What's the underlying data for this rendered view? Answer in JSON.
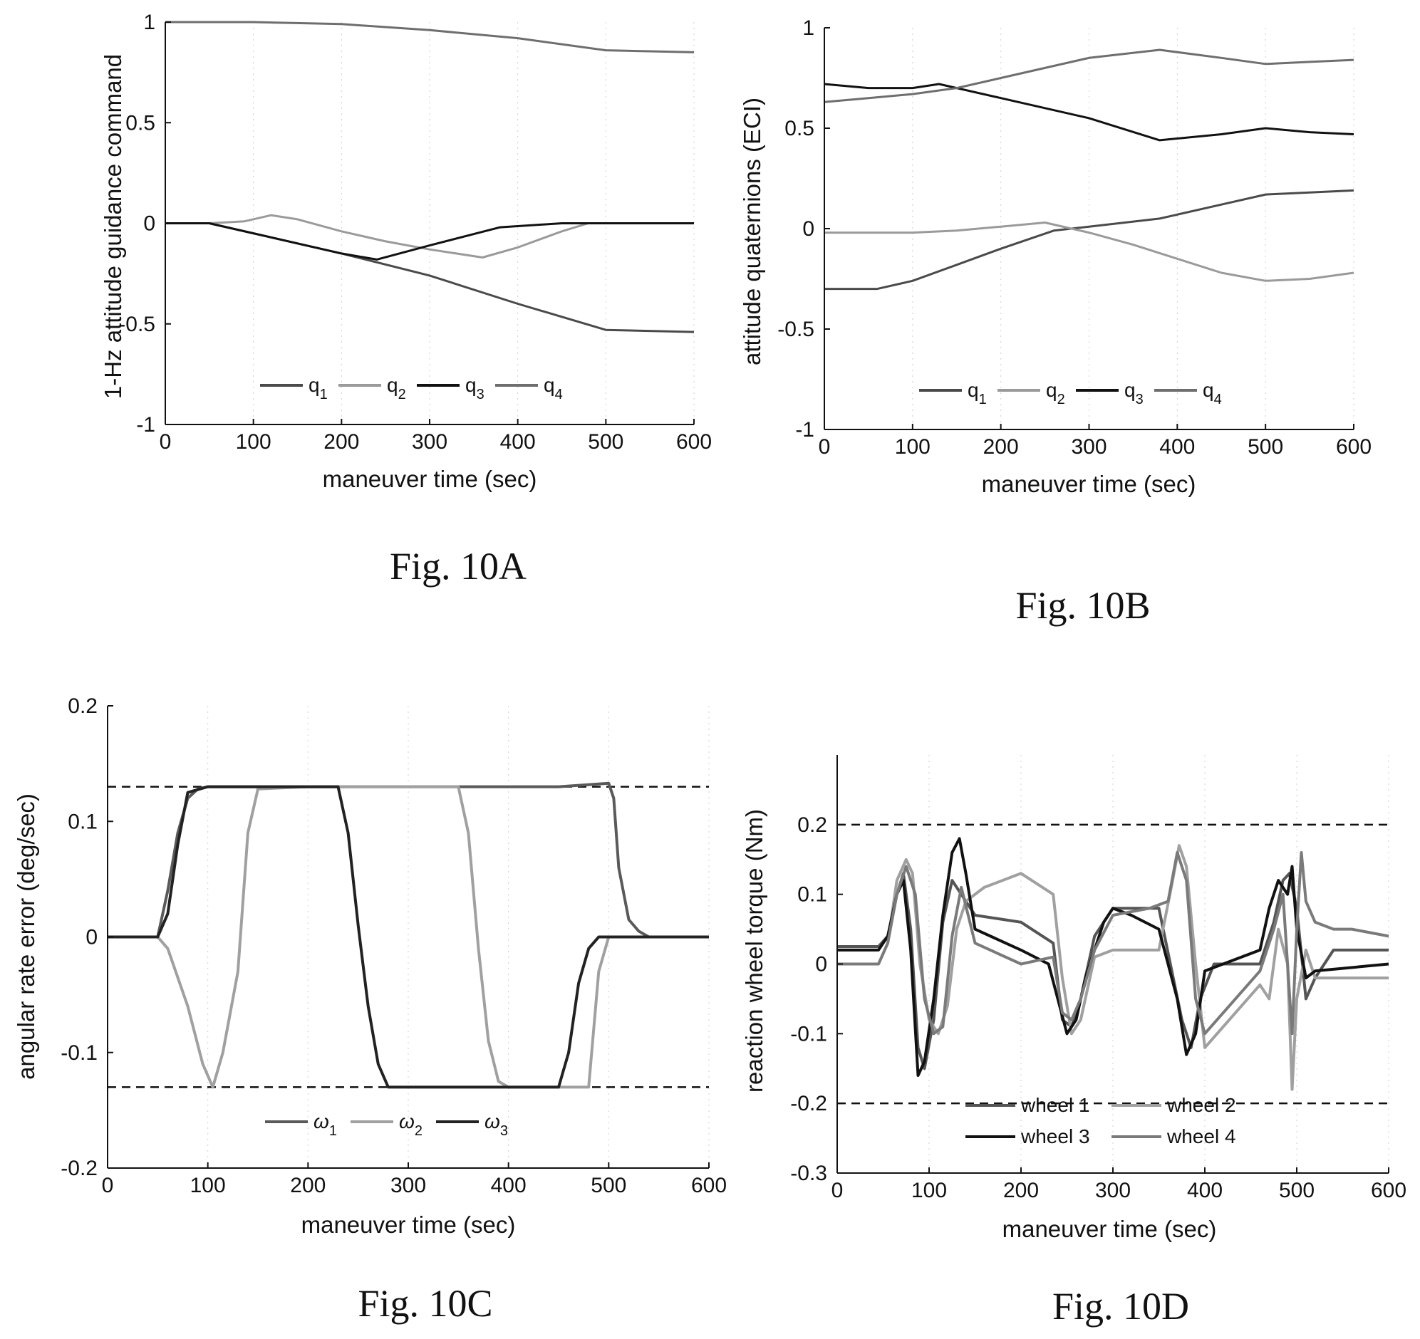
{
  "chart_data": [
    {
      "id": "a",
      "type": "line",
      "caption": "Fig. 10A",
      "xlabel": "maneuver time (sec)",
      "ylabel": "1-Hz attitude guidance command",
      "xlim": [
        0,
        600
      ],
      "ylim": [
        -1,
        1
      ],
      "xticks": [
        0,
        100,
        200,
        300,
        400,
        500,
        600
      ],
      "xtick_labels": [
        "0",
        "100",
        "200",
        "300",
        "400",
        "500",
        "600"
      ],
      "yticks": [
        -1,
        -0.5,
        0,
        0.5,
        1
      ],
      "ytick_labels": [
        "-1",
        "-0.5",
        "0",
        "0.5",
        "1"
      ],
      "legend_position": "bottom-center",
      "legend_cols": 4,
      "series": [
        {
          "name": "q",
          "sub": "1",
          "color": "#4a4a4a",
          "x": [
            0,
            50,
            100,
            200,
            300,
            400,
            500,
            600
          ],
          "y": [
            0,
            0,
            -0.05,
            -0.15,
            -0.26,
            -0.4,
            -0.53,
            -0.54
          ]
        },
        {
          "name": "q",
          "sub": "2",
          "color": "#9a9a9a",
          "x": [
            0,
            50,
            90,
            120,
            150,
            200,
            250,
            300,
            360,
            400,
            450,
            480,
            600
          ],
          "y": [
            0,
            0,
            0.01,
            0.04,
            0.02,
            -0.04,
            -0.09,
            -0.13,
            -0.17,
            -0.12,
            -0.04,
            0,
            0
          ]
        },
        {
          "name": "q",
          "sub": "3",
          "color": "#111111",
          "x": [
            0,
            50,
            100,
            150,
            200,
            240,
            300,
            380,
            450,
            500,
            600
          ],
          "y": [
            0,
            0,
            -0.05,
            -0.1,
            -0.15,
            -0.18,
            -0.11,
            -0.02,
            0,
            0,
            0
          ]
        },
        {
          "name": "q",
          "sub": "4",
          "color": "#6e6e6e",
          "x": [
            0,
            100,
            200,
            300,
            400,
            500,
            600
          ],
          "y": [
            1,
            1,
            0.99,
            0.96,
            0.92,
            0.86,
            0.85
          ]
        }
      ]
    },
    {
      "id": "b",
      "type": "line",
      "caption": "Fig. 10B",
      "xlabel": "maneuver time (sec)",
      "ylabel": "attitude quaternions (ECI)",
      "xlim": [
        0,
        600
      ],
      "ylim": [
        -1,
        1
      ],
      "xticks": [
        0,
        100,
        200,
        300,
        400,
        500,
        600
      ],
      "xtick_labels": [
        "0",
        "100",
        "200",
        "300",
        "400",
        "500",
        "600"
      ],
      "yticks": [
        -1,
        -0.5,
        0,
        0.5,
        1
      ],
      "ytick_labels": [
        "-1",
        "-0.5",
        "0",
        "0.5",
        "1"
      ],
      "legend_position": "bottom-center",
      "legend_cols": 4,
      "series": [
        {
          "name": "q",
          "sub": "1",
          "color": "#4a4a4a",
          "x": [
            0,
            60,
            100,
            150,
            200,
            260,
            300,
            380,
            450,
            500,
            550,
            600
          ],
          "y": [
            -0.3,
            -0.3,
            -0.26,
            -0.18,
            -0.1,
            -0.01,
            0.01,
            0.05,
            0.12,
            0.17,
            0.18,
            0.19
          ]
        },
        {
          "name": "q",
          "sub": "2",
          "color": "#9a9a9a",
          "x": [
            0,
            100,
            150,
            200,
            250,
            300,
            350,
            400,
            450,
            500,
            550,
            600
          ],
          "y": [
            -0.02,
            -0.02,
            -0.01,
            0.01,
            0.03,
            -0.02,
            -0.08,
            -0.15,
            -0.22,
            -0.26,
            -0.25,
            -0.22
          ]
        },
        {
          "name": "q",
          "sub": "3",
          "color": "#111111",
          "x": [
            0,
            50,
            100,
            130,
            200,
            300,
            380,
            450,
            500,
            550,
            600
          ],
          "y": [
            0.72,
            0.7,
            0.7,
            0.72,
            0.65,
            0.55,
            0.44,
            0.47,
            0.5,
            0.48,
            0.47
          ]
        },
        {
          "name": "q",
          "sub": "4",
          "color": "#6e6e6e",
          "x": [
            0,
            50,
            100,
            150,
            200,
            250,
            300,
            380,
            450,
            500,
            550,
            600
          ],
          "y": [
            0.63,
            0.65,
            0.67,
            0.7,
            0.75,
            0.8,
            0.85,
            0.89,
            0.85,
            0.82,
            0.83,
            0.84
          ]
        }
      ]
    },
    {
      "id": "c",
      "type": "line",
      "caption": "Fig. 10C",
      "xlabel": "maneuver time (sec)",
      "ylabel": "angular rate error (deg/sec)",
      "xlim": [
        0,
        600
      ],
      "ylim": [
        -0.2,
        0.2
      ],
      "xticks": [
        0,
        100,
        200,
        300,
        400,
        500,
        600
      ],
      "xtick_labels": [
        "0",
        "100",
        "200",
        "300",
        "400",
        "500",
        "600"
      ],
      "yticks": [
        -0.2,
        -0.1,
        0,
        0.1,
        0.2
      ],
      "ytick_labels": [
        "-0.2",
        "-0.1",
        "0",
        "0.1",
        "0.2"
      ],
      "reference_lines": [
        0.13,
        -0.13
      ],
      "legend_position": "bottom-center",
      "legend_cols": 3,
      "series": [
        {
          "name": "ω",
          "sub": "1",
          "color": "#5a5a5a",
          "x": [
            0,
            50,
            60,
            70,
            80,
            90,
            100,
            150,
            200,
            300,
            400,
            450,
            500,
            505,
            510,
            520,
            530,
            540,
            600
          ],
          "y": [
            0,
            0,
            0.04,
            0.09,
            0.12,
            0.128,
            0.13,
            0.13,
            0.13,
            0.13,
            0.13,
            0.13,
            0.133,
            0.12,
            0.06,
            0.015,
            0.005,
            0,
            0
          ]
        },
        {
          "name": "ω",
          "sub": "2",
          "color": "#a0a0a0",
          "x": [
            0,
            50,
            60,
            80,
            95,
            105,
            115,
            130,
            140,
            150,
            200,
            250,
            300,
            350,
            360,
            370,
            380,
            390,
            400,
            450,
            480,
            490,
            500,
            600
          ],
          "y": [
            0,
            0,
            -0.01,
            -0.06,
            -0.11,
            -0.13,
            -0.1,
            -0.03,
            0.09,
            0.128,
            0.13,
            0.13,
            0.13,
            0.13,
            0.09,
            -0.01,
            -0.09,
            -0.125,
            -0.13,
            -0.13,
            -0.13,
            -0.03,
            0,
            0
          ]
        },
        {
          "name": "ω",
          "sub": "3",
          "color": "#222222",
          "x": [
            0,
            50,
            60,
            70,
            80,
            100,
            150,
            230,
            240,
            250,
            260,
            270,
            280,
            300,
            400,
            450,
            460,
            470,
            480,
            490,
            500,
            600
          ],
          "y": [
            0,
            0,
            0.02,
            0.08,
            0.125,
            0.13,
            0.13,
            0.13,
            0.09,
            0.01,
            -0.06,
            -0.11,
            -0.13,
            -0.13,
            -0.13,
            -0.13,
            -0.1,
            -0.04,
            -0.01,
            0,
            0,
            0
          ]
        }
      ]
    },
    {
      "id": "d",
      "type": "line",
      "caption": "Fig. 10D",
      "xlabel": "maneuver time (sec)",
      "ylabel": "reaction wheel torque (Nm)",
      "xlim": [
        0,
        600
      ],
      "ylim": [
        -0.3,
        0.3
      ],
      "xticks": [
        0,
        100,
        200,
        300,
        400,
        500,
        600
      ],
      "xtick_labels": [
        "0",
        "100",
        "200",
        "300",
        "400",
        "500",
        "600"
      ],
      "yticks": [
        -0.3,
        -0.2,
        -0.1,
        0,
        0.1,
        0.2
      ],
      "ytick_labels": [
        "-0.3",
        "-0.2",
        "-0.1",
        "0",
        "0.1",
        "0.2"
      ],
      "reference_lines": [
        0.2,
        -0.2
      ],
      "legend_position": "bottom-center",
      "legend_cols": 2,
      "series": [
        {
          "name": "wheel 1",
          "color": "#555555",
          "x": [
            0,
            45,
            55,
            65,
            72,
            80,
            88,
            95,
            105,
            115,
            125,
            135,
            150,
            200,
            235,
            245,
            255,
            265,
            280,
            300,
            350,
            375,
            385,
            395,
            410,
            460,
            475,
            485,
            492,
            500,
            510,
            520,
            540,
            600
          ],
          "y": [
            0.025,
            0.025,
            0.04,
            0.1,
            0.13,
            0.05,
            -0.12,
            -0.15,
            -0.08,
            0.06,
            0.12,
            0.1,
            0.07,
            0.06,
            0.03,
            -0.08,
            -0.09,
            -0.05,
            0.04,
            0.08,
            0.08,
            -0.08,
            -0.12,
            -0.05,
            0,
            0,
            0.06,
            0.12,
            0.13,
            0.08,
            -0.05,
            -0.02,
            0.02,
            0.02
          ]
        },
        {
          "name": "wheel 2",
          "color": "#a0a0a0",
          "x": [
            0,
            45,
            55,
            65,
            75,
            82,
            90,
            100,
            110,
            120,
            130,
            140,
            160,
            200,
            235,
            245,
            255,
            265,
            280,
            300,
            350,
            365,
            372,
            380,
            390,
            400,
            460,
            470,
            480,
            490,
            495,
            500,
            510,
            520,
            600
          ],
          "y": [
            0,
            0,
            0.03,
            0.12,
            0.15,
            0.13,
            0,
            -0.08,
            -0.1,
            -0.06,
            0.05,
            0.09,
            0.11,
            0.13,
            0.1,
            -0.02,
            -0.1,
            -0.08,
            0.01,
            0.02,
            0.02,
            0.12,
            0.17,
            0.14,
            0,
            -0.12,
            -0.03,
            -0.05,
            0.05,
            0,
            -0.18,
            -0.05,
            0.02,
            -0.02,
            -0.02
          ]
        },
        {
          "name": "wheel 3",
          "color": "#111111",
          "x": [
            0,
            45,
            55,
            65,
            72,
            80,
            88,
            95,
            105,
            115,
            125,
            133,
            140,
            150,
            200,
            230,
            240,
            250,
            260,
            270,
            290,
            300,
            320,
            350,
            370,
            380,
            390,
            400,
            460,
            470,
            480,
            490,
            495,
            500,
            510,
            520,
            600
          ],
          "y": [
            0.02,
            0.02,
            0.04,
            0.1,
            0.12,
            0.02,
            -0.16,
            -0.14,
            -0.05,
            0.07,
            0.16,
            0.18,
            0.13,
            0.05,
            0.02,
            0,
            -0.05,
            -0.1,
            -0.08,
            -0.02,
            0.06,
            0.08,
            0.07,
            0.05,
            -0.05,
            -0.13,
            -0.1,
            -0.01,
            0.02,
            0.08,
            0.12,
            0.1,
            0.14,
            0.05,
            -0.02,
            -0.01,
            0
          ]
        },
        {
          "name": "wheel 4",
          "color": "#7a7a7a",
          "x": [
            0,
            45,
            55,
            65,
            75,
            85,
            95,
            105,
            115,
            125,
            135,
            150,
            200,
            235,
            245,
            255,
            265,
            280,
            300,
            340,
            360,
            370,
            380,
            390,
            400,
            460,
            475,
            485,
            495,
            500,
            505,
            510,
            520,
            540,
            560,
            600
          ],
          "y": [
            0,
            0,
            0.03,
            0.1,
            0.14,
            0.1,
            -0.05,
            -0.1,
            -0.09,
            0.04,
            0.11,
            0.03,
            0,
            0.01,
            -0.07,
            -0.08,
            -0.05,
            0.02,
            0.07,
            0.08,
            0.09,
            0.16,
            0.12,
            -0.05,
            -0.1,
            -0.01,
            0.05,
            0.1,
            -0.1,
            0.05,
            0.16,
            0.09,
            0.06,
            0.05,
            0.05,
            0.04
          ]
        }
      ]
    }
  ]
}
